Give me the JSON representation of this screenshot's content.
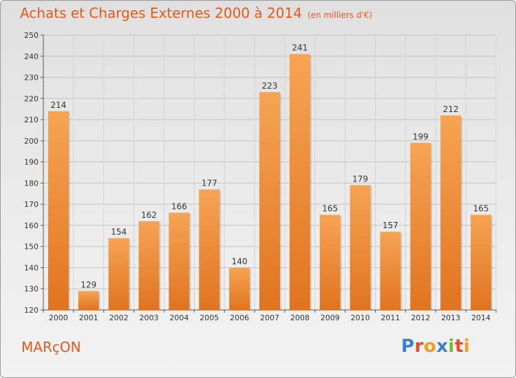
{
  "header": {
    "title": "Achats et Charges Externes 2000 à 2014",
    "unit": "(en milliers d'€)"
  },
  "footer": {
    "commune": "MARçON",
    "logo_text": "Proxiti"
  },
  "colors": {
    "title": "#e05a1c",
    "bar_light": "#f6a454",
    "bar_dark": "#e07420"
  },
  "chart_data": {
    "type": "bar",
    "title": "Achats et Charges Externes 2000 à 2014",
    "xlabel": "",
    "ylabel": "",
    "categories": [
      "2000",
      "2001",
      "2002",
      "2003",
      "2004",
      "2005",
      "2006",
      "2007",
      "2008",
      "2009",
      "2010",
      "2011",
      "2012",
      "2013",
      "2014"
    ],
    "values": [
      214,
      129,
      154,
      162,
      166,
      177,
      140,
      223,
      241,
      165,
      179,
      157,
      199,
      212,
      165
    ],
    "ylim": [
      120,
      250
    ],
    "yticks": [
      120,
      130,
      140,
      150,
      160,
      170,
      180,
      190,
      200,
      210,
      220,
      230,
      240,
      250
    ],
    "grid": true
  }
}
